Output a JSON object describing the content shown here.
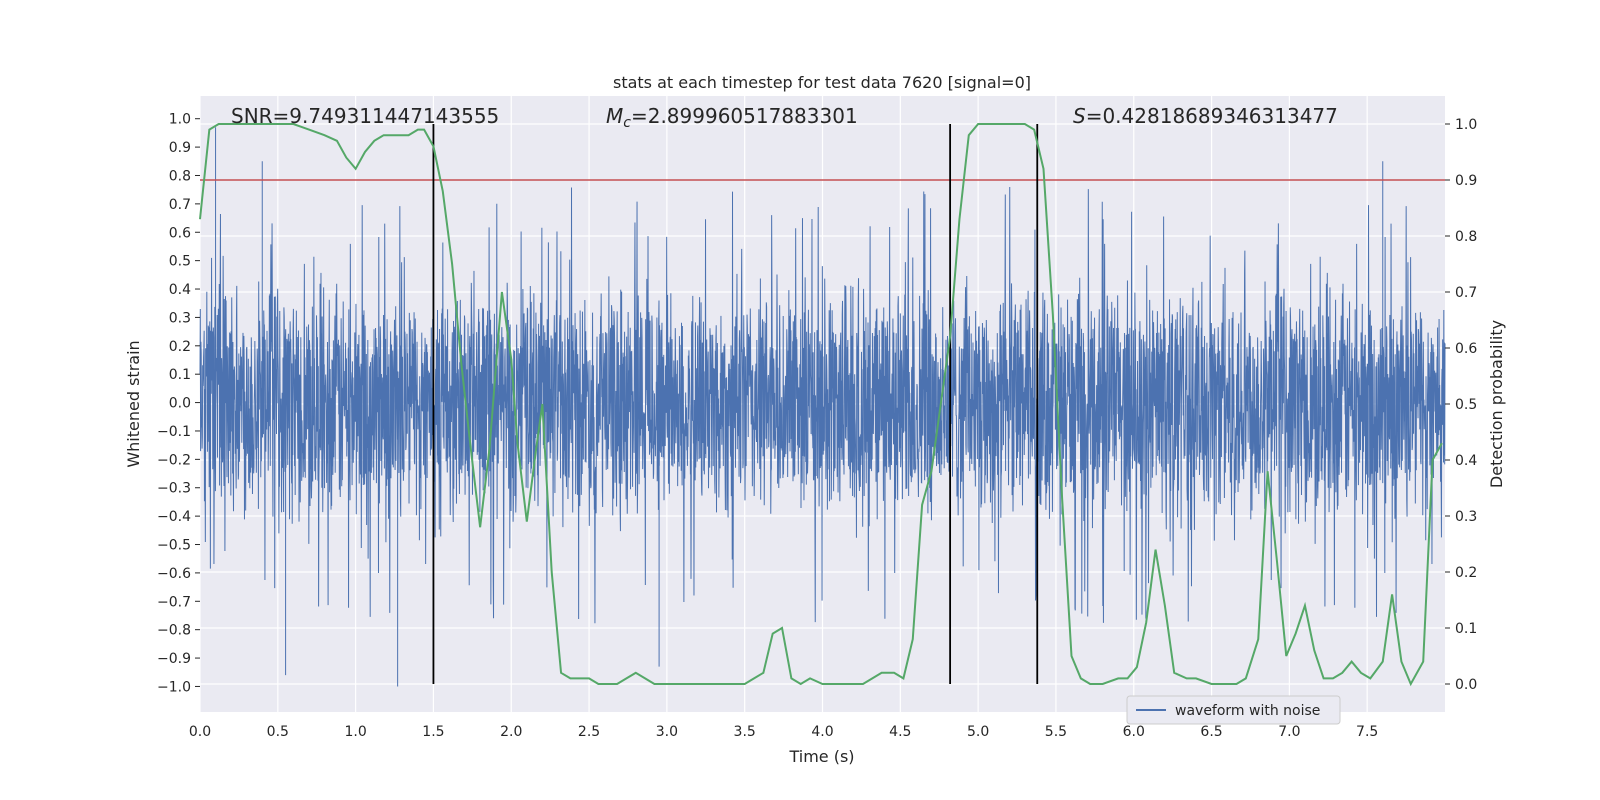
{
  "chart_data": {
    "type": "line",
    "title": "stats at each timestep for test data 7620 [signal=0]",
    "xlabel": "Time (s)",
    "ylabel_left": "Whitened strain",
    "ylabel_right": "Detection probability",
    "xlim": [
      0,
      8
    ],
    "ylim_left": [
      -1.09,
      1.08
    ],
    "ylim_right": [
      -0.05,
      1.05
    ],
    "xticks": [
      "0.0",
      "0.5",
      "1.0",
      "1.5",
      "2.0",
      "2.5",
      "3.0",
      "3.5",
      "4.0",
      "4.5",
      "5.0",
      "5.5",
      "6.0",
      "6.5",
      "7.0",
      "7.5"
    ],
    "yticks_left": [
      "1.0",
      "0.9",
      "0.8",
      "0.7",
      "0.6",
      "0.5",
      "0.4",
      "0.3",
      "0.2",
      "0.1",
      "0.0",
      "−0.1",
      "−0.2",
      "−0.3",
      "−0.4",
      "−0.5",
      "−0.6",
      "−0.7",
      "−0.8",
      "−0.9",
      "−1.0"
    ],
    "yticks_right": [
      "1.0",
      "0.9",
      "0.8",
      "0.7",
      "0.6",
      "0.5",
      "0.4",
      "0.3",
      "0.2",
      "0.1",
      "0.0"
    ],
    "annotations": {
      "snr": "SNR=9.749311447143555",
      "mc_symbol": "M",
      "mc_sub": "c",
      "mc_value": "=2.899960517883301",
      "s_symbol": "S",
      "s_value": "=0.42818689346313477"
    },
    "legend": {
      "label": "waveform with noise",
      "position": "lower-right"
    },
    "threshold_right": 0.9,
    "vlines_x": [
      1.5,
      4.82,
      5.38
    ],
    "series": [
      {
        "name": "waveform with noise",
        "axis": "left",
        "color": "#4c72b0",
        "kind": "noise",
        "typical_amplitude": 0.4,
        "max_peak": 0.97,
        "min_peak": -1.0,
        "peaks": [
          [
            0.1,
            0.97
          ],
          [
            0.4,
            0.85
          ],
          [
            1.27,
            -1.0
          ],
          [
            0.55,
            -0.96
          ],
          [
            2.95,
            -0.93
          ],
          [
            7.6,
            0.85
          ]
        ]
      },
      {
        "name": "detection probability",
        "axis": "right",
        "color": "#55a868",
        "x": [
          0.0,
          0.06,
          0.12,
          0.2,
          0.3,
          0.4,
          0.5,
          0.6,
          0.7,
          0.8,
          0.88,
          0.94,
          1.0,
          1.06,
          1.12,
          1.18,
          1.26,
          1.34,
          1.4,
          1.44,
          1.5,
          1.56,
          1.62,
          1.68,
          1.74,
          1.8,
          1.86,
          1.94,
          2.0,
          2.04,
          2.1,
          2.16,
          2.2,
          2.26,
          2.32,
          2.38,
          2.44,
          2.5,
          2.56,
          2.62,
          2.68,
          2.74,
          2.8,
          2.86,
          2.92,
          3.0,
          3.1,
          3.2,
          3.3,
          3.4,
          3.5,
          3.56,
          3.62,
          3.68,
          3.74,
          3.8,
          3.86,
          3.92,
          4.0,
          4.1,
          4.2,
          4.26,
          4.32,
          4.38,
          4.46,
          4.52,
          4.58,
          4.64,
          4.7,
          4.76,
          4.82,
          4.88,
          4.94,
          5.0,
          5.1,
          5.2,
          5.3,
          5.36,
          5.42,
          5.48,
          5.54,
          5.6,
          5.66,
          5.72,
          5.8,
          5.9,
          5.96,
          6.02,
          6.08,
          6.14,
          6.2,
          6.26,
          6.34,
          6.4,
          6.5,
          6.6,
          6.66,
          6.72,
          6.8,
          6.86,
          6.92,
          6.98,
          7.04,
          7.1,
          7.16,
          7.22,
          7.28,
          7.34,
          7.4,
          7.46,
          7.52,
          7.6,
          7.66,
          7.72,
          7.78,
          7.86,
          7.92,
          7.98
        ],
        "values": [
          0.83,
          0.99,
          1.0,
          1.0,
          1.0,
          1.0,
          1.0,
          1.0,
          0.99,
          0.98,
          0.97,
          0.94,
          0.92,
          0.95,
          0.97,
          0.98,
          0.98,
          0.98,
          0.99,
          0.99,
          0.96,
          0.88,
          0.75,
          0.57,
          0.42,
          0.28,
          0.42,
          0.7,
          0.58,
          0.43,
          0.29,
          0.42,
          0.5,
          0.2,
          0.02,
          0.01,
          0.01,
          0.01,
          0.0,
          0.0,
          0.0,
          0.01,
          0.02,
          0.01,
          0.0,
          0.0,
          0.0,
          0.0,
          0.0,
          0.0,
          0.0,
          0.01,
          0.02,
          0.09,
          0.1,
          0.01,
          0.0,
          0.01,
          0.0,
          0.0,
          0.0,
          0.0,
          0.01,
          0.02,
          0.02,
          0.01,
          0.08,
          0.32,
          0.38,
          0.5,
          0.62,
          0.83,
          0.98,
          1.0,
          1.0,
          1.0,
          1.0,
          0.99,
          0.92,
          0.66,
          0.33,
          0.05,
          0.01,
          0.0,
          0.0,
          0.01,
          0.01,
          0.03,
          0.11,
          0.24,
          0.14,
          0.02,
          0.01,
          0.01,
          0.0,
          0.0,
          0.0,
          0.01,
          0.08,
          0.38,
          0.22,
          0.05,
          0.09,
          0.14,
          0.06,
          0.01,
          0.01,
          0.02,
          0.04,
          0.02,
          0.01,
          0.04,
          0.16,
          0.04,
          0.0,
          0.04,
          0.4,
          0.43
        ]
      }
    ]
  }
}
